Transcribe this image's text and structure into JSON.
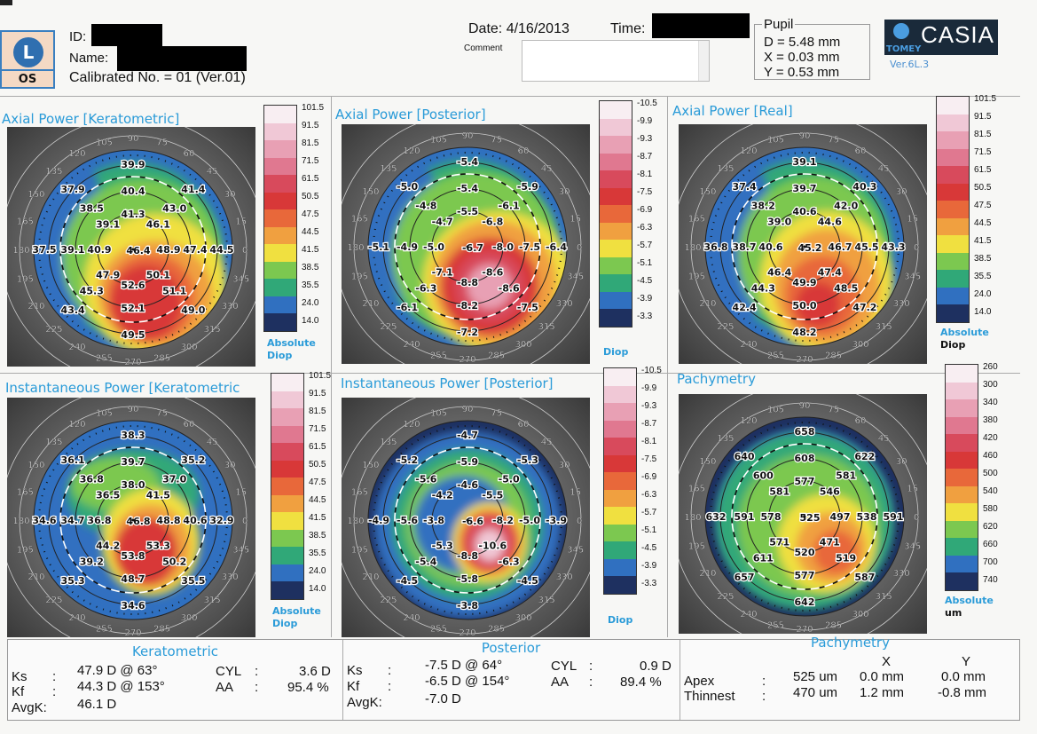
{
  "header": {
    "eye_letter": "L",
    "eye_side": "OS",
    "id_label": "ID:",
    "name_label": "Name:",
    "calibrated": "Calibrated No. = 01 (Ver.01)",
    "date": "Date: 4/16/2013",
    "time_label": "Time:",
    "comment_label": "Comment",
    "pupil": {
      "title": "Pupil",
      "d": "D = 5.48 mm",
      "x": "X = 0.03 mm",
      "y": "Y = 0.53 mm"
    },
    "logo": {
      "brand": "CASIA",
      "maker": "TOMEY",
      "version": "Ver.6L.3"
    }
  },
  "angle_labels": [
    "0",
    "15",
    "30",
    "45",
    "60",
    "75",
    "90",
    "105",
    "120",
    "135",
    "150",
    "165",
    "180",
    "195",
    "210",
    "225",
    "240",
    "255",
    "270",
    "285",
    "300",
    "315",
    "330",
    "345"
  ],
  "scales": {
    "keratometric": {
      "labels": [
        "101.5",
        "91.5",
        "81.5",
        "71.5",
        "61.5",
        "50.5",
        "47.5",
        "44.5",
        "41.5",
        "38.5",
        "35.5",
        "24.0",
        "14.0"
      ]
    },
    "posterior": {
      "labels": [
        "-10.5",
        "-9.9",
        "-9.3",
        "-8.7",
        "-8.1",
        "-7.5",
        "-6.9",
        "-6.3",
        "-5.7",
        "-5.1",
        "-4.5",
        "-3.9",
        "-3.3"
      ]
    },
    "pachymetry": {
      "labels": [
        "260",
        "300",
        "340",
        "380",
        "420",
        "460",
        "500",
        "540",
        "580",
        "620",
        "660",
        "700",
        "740"
      ]
    },
    "colors": [
      "#f8eef2",
      "#f0c8d6",
      "#e8a0b4",
      "#e07890",
      "#d84a5c",
      "#d83838",
      "#e8683a",
      "#f0a040",
      "#f0e040",
      "#7cc850",
      "#30a878",
      "#3070c0",
      "#1e3060"
    ]
  },
  "maps": [
    {
      "title": "Axial Power [Keratometric]",
      "scale": "keratometric",
      "unit_line1": "Absolute",
      "unit_line2": "Diop",
      "center": "46.4",
      "ring1": [
        "41.3",
        "46.1",
        "48.9",
        "50.1",
        "52.6",
        "47.9",
        "40.9",
        "39.1"
      ],
      "ring2": [
        "40.4",
        "43.0",
        "47.4",
        "51.1",
        "52.1",
        "45.3",
        "39.1",
        "38.5"
      ],
      "ring3": [
        "39.9",
        "41.4",
        "44.5",
        "49.0",
        "49.5",
        "43.4",
        "37.5",
        "37.9"
      ]
    },
    {
      "title": "Axial Power [Posterior]",
      "scale": "posterior",
      "unit_line1": "",
      "unit_line2": "Diop",
      "center": "-6.7",
      "ring1": [
        "-5.5",
        "-6.8",
        "-8.0",
        "-8.6",
        "-8.8",
        "-7.1",
        "-5.0",
        "-4.7"
      ],
      "ring2": [
        "-5.4",
        "-6.1",
        "-7.5",
        "-8.6",
        "-8.2",
        "-6.3",
        "-4.9",
        "-4.8"
      ],
      "ring3": [
        "-5.4",
        "-5.9",
        "-6.4",
        "-7.5",
        "-7.2",
        "-6.1",
        "-5.1",
        "-5.0"
      ]
    },
    {
      "title": "Axial Power [Real]",
      "scale": "keratometric",
      "unit_line1": "Absolute",
      "unit_line2": "Diop",
      "center": "45.2",
      "ring1": [
        "40.6",
        "44.6",
        "46.7",
        "47.4",
        "49.9",
        "46.4",
        "40.6",
        "39.0"
      ],
      "ring2": [
        "39.7",
        "42.0",
        "45.5",
        "48.5",
        "50.0",
        "44.3",
        "38.7",
        "38.2"
      ],
      "ring3": [
        "39.1",
        "40.3",
        "43.3",
        "47.2",
        "48.2",
        "42.4",
        "36.8",
        "37.4"
      ]
    },
    {
      "title": "Instantaneous Power [Keratometric",
      "scale": "keratometric",
      "unit_line1": "Absolute",
      "unit_line2": "Diop",
      "center": "46.8",
      "ring1": [
        "38.0",
        "41.5",
        "48.8",
        "53.3",
        "53.8",
        "44.2",
        "36.8",
        "36.5"
      ],
      "ring2": [
        "39.7",
        "37.0",
        "40.6",
        "50.2",
        "48.7",
        "39.2",
        "34.7",
        "36.8"
      ],
      "ring3": [
        "38.3",
        "35.2",
        "32.9",
        "35.5",
        "34.6",
        "35.3",
        "34.6",
        "36.1"
      ]
    },
    {
      "title": "Instantaneous Power [Posterior]",
      "scale": "posterior",
      "unit_line1": "",
      "unit_line2": "Diop",
      "center": "-6.6",
      "ring1": [
        "-4.6",
        "-5.5",
        "-8.2",
        "-10.6",
        "-8.8",
        "-5.3",
        "-3.8",
        "-4.2"
      ],
      "ring2": [
        "-5.9",
        "-5.0",
        "-5.0",
        "-6.3",
        "-5.8",
        "-5.4",
        "-5.6",
        "-5.6"
      ],
      "ring3": [
        "-4.7",
        "-5.3",
        "-3.9",
        "-4.5",
        "-3.8",
        "-4.5",
        "-4.9",
        "-5.2"
      ]
    },
    {
      "title": "Pachymetry",
      "scale": "pachymetry",
      "unit_line1": "Absolute",
      "unit_line2": "um",
      "center": "525",
      "ring1": [
        "577",
        "546",
        "497",
        "471",
        "520",
        "571",
        "578",
        "581"
      ],
      "ring2": [
        "608",
        "581",
        "538",
        "519",
        "577",
        "611",
        "591",
        "600"
      ],
      "ring3": [
        "658",
        "622",
        "591",
        "587",
        "642",
        "657",
        "632",
        "640"
      ]
    }
  ],
  "summary": {
    "keratometric": {
      "title": "Keratometric",
      "ks_label": "Ks",
      "ks": "47.9 D @ 63°",
      "kf_label": "Kf",
      "kf": "44.3 D @ 153°",
      "avgk_label": "AvgK:",
      "avgk": "46.1 D",
      "cyl_label": "CYL",
      "cyl": "3.6 D",
      "aa_label": "AA",
      "aa": "95.4 %"
    },
    "posterior": {
      "title": "Posterior",
      "ks_label": "Ks",
      "ks": "-7.5 D @ 64°",
      "kf_label": "Kf",
      "kf": "-6.5 D @ 154°",
      "avgk_label": "AvgK:",
      "avgk": "-7.0 D",
      "cyl_label": "CYL",
      "cyl": "0.9 D",
      "aa_label": "AA",
      "aa": "89.4 %"
    },
    "pachymetry": {
      "title": "Pachymetry",
      "x_label": "X",
      "y_label": "Y",
      "apex_label": "Apex",
      "apex": "525 um",
      "apex_x": "0.0 mm",
      "apex_y": "0.0 mm",
      "thinnest_label": "Thinnest",
      "thinnest": "470 um",
      "thinnest_x": "1.2 mm",
      "thinnest_y": "-0.8 mm"
    }
  }
}
